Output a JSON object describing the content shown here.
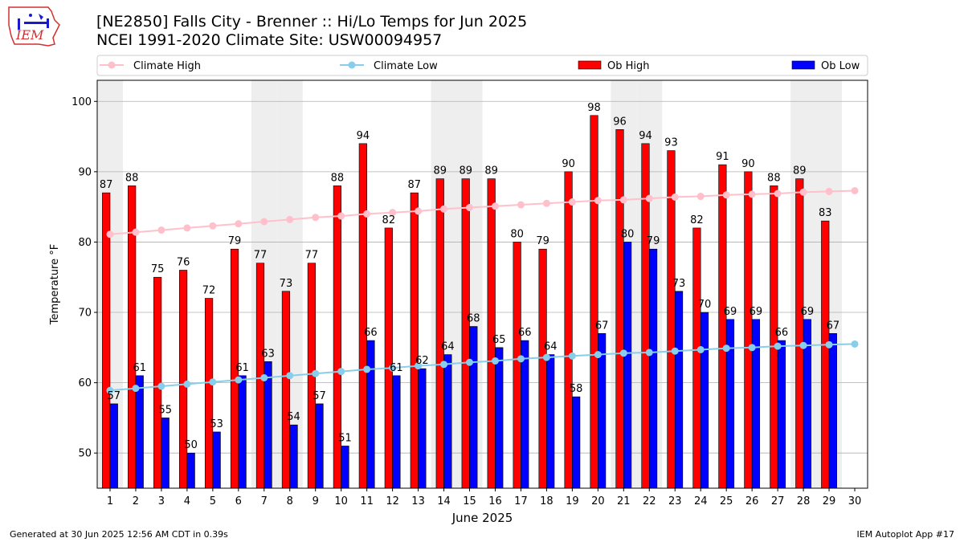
{
  "header": {
    "title_line1": "[NE2850] Falls City - Brenner :: Hi/Lo Temps for Jun 2025",
    "title_line2": "NCEI 1991-2020 Climate Site: USW00094957",
    "logo_text": "IEM"
  },
  "footer": {
    "left": "Generated at 30 Jun 2025 12:56 AM CDT in 0.39s",
    "right": "IEM Autoplot App #17"
  },
  "colors": {
    "ob_high": "#ff0000",
    "ob_low": "#0000ff",
    "climate_high": "#ffc0cb",
    "climate_low": "#87ceeb",
    "weekend_shade": "#eeeeee",
    "grid": "#b0b0b0"
  },
  "chart_data": {
    "type": "bar",
    "xlabel": "June 2025",
    "ylabel": "Temperature $^\\circ$F",
    "ylim": [
      45,
      103
    ],
    "yticks": [
      50,
      60,
      70,
      80,
      90,
      100
    ],
    "grid": "horizontal",
    "legend_position": "top",
    "categories": [
      "1",
      "2",
      "3",
      "4",
      "5",
      "6",
      "7",
      "8",
      "9",
      "10",
      "11",
      "12",
      "13",
      "14",
      "15",
      "16",
      "17",
      "18",
      "19",
      "20",
      "21",
      "22",
      "23",
      "24",
      "25",
      "26",
      "27",
      "28",
      "29",
      "30"
    ],
    "shaded_days": [
      1,
      7,
      8,
      14,
      15,
      21,
      22,
      28,
      29
    ],
    "series": [
      {
        "name": "Ob High",
        "kind": "bar",
        "values": [
          87,
          88,
          75,
          76,
          72,
          79,
          77,
          73,
          77,
          88,
          94,
          82,
          87,
          89,
          89,
          89,
          80,
          79,
          90,
          98,
          96,
          94,
          93,
          82,
          91,
          90,
          88,
          89,
          83,
          null
        ]
      },
      {
        "name": "Ob Low",
        "kind": "bar",
        "values": [
          57,
          61,
          55,
          50,
          53,
          61,
          63,
          54,
          57,
          51,
          66,
          61,
          62,
          64,
          68,
          65,
          66,
          64,
          58,
          67,
          80,
          79,
          73,
          70,
          69,
          69,
          66,
          69,
          67,
          null
        ]
      },
      {
        "name": "Climate High",
        "kind": "line",
        "values": [
          81.1,
          81.4,
          81.7,
          82.0,
          82.3,
          82.6,
          82.9,
          83.2,
          83.5,
          83.7,
          84.0,
          84.2,
          84.4,
          84.7,
          84.9,
          85.1,
          85.3,
          85.5,
          85.7,
          85.9,
          86.0,
          86.2,
          86.4,
          86.5,
          86.7,
          86.8,
          86.9,
          87.1,
          87.2,
          87.3
        ]
      },
      {
        "name": "Climate Low",
        "kind": "line",
        "values": [
          58.9,
          59.2,
          59.5,
          59.8,
          60.1,
          60.4,
          60.7,
          61.0,
          61.3,
          61.6,
          61.9,
          62.1,
          62.4,
          62.6,
          62.9,
          63.1,
          63.4,
          63.6,
          63.8,
          64.0,
          64.2,
          64.3,
          64.5,
          64.7,
          64.9,
          65.0,
          65.2,
          65.3,
          65.4,
          65.5
        ]
      }
    ]
  }
}
